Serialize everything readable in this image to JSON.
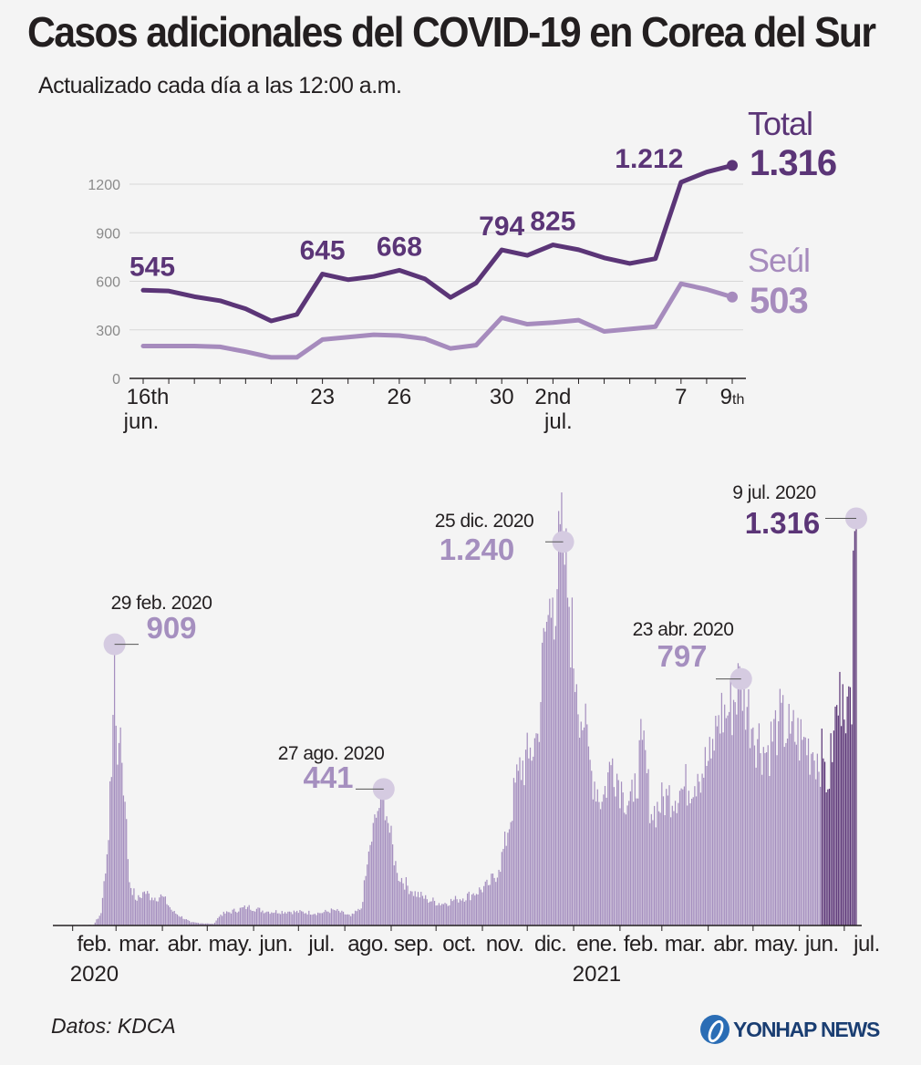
{
  "header": {
    "title": "Casos adicionales del COVID-19 en Corea del Sur",
    "subtitle": "Actualizado cada día a las 12:00 a.m."
  },
  "footer": {
    "source": "Datos: KDCA",
    "logo_text": "YONHAP NEWS"
  },
  "colors": {
    "total": "#5b3577",
    "seoul": "#a68bbd",
    "bar": "#a58fbf",
    "bar_recent": "#5b3577",
    "marker": "#d5cbe1"
  },
  "chart_data": [
    {
      "type": "line",
      "ylim": [
        0,
        1200
      ],
      "yticks": [
        0,
        300,
        600,
        900,
        1200
      ],
      "x": [
        "16 jun.",
        "17 jun.",
        "18 jun.",
        "19 jun.",
        "20 jun.",
        "21 jun.",
        "22 jun.",
        "23 jun.",
        "24 jun.",
        "25 jun.",
        "26 jun.",
        "27 jun.",
        "28 jun.",
        "29 jun.",
        "30 jun.",
        "1 jul.",
        "2 jul.",
        "3 jul.",
        "4 jul.",
        "5 jul.",
        "6 jul.",
        "7 jul.",
        "8 jul.",
        "9 jul."
      ],
      "x_tick_labels": [
        {
          "index": 0,
          "line1": "16th",
          "line2": "jun."
        },
        {
          "index": 7,
          "line1": "23",
          "line2": ""
        },
        {
          "index": 10,
          "line1": "26",
          "line2": ""
        },
        {
          "index": 14,
          "line1": "30",
          "line2": ""
        },
        {
          "index": 16,
          "line1": "2nd",
          "line2": "jul."
        },
        {
          "index": 21,
          "line1": "7",
          "line2": ""
        },
        {
          "index": 23,
          "line1": "9",
          "sup": "th",
          "line2": ""
        }
      ],
      "series": [
        {
          "name": "Total",
          "final_label": "1.316",
          "values": [
            545,
            540,
            505,
            480,
            430,
            355,
            395,
            645,
            610,
            630,
            668,
            615,
            500,
            590,
            794,
            760,
            825,
            795,
            745,
            710,
            740,
            1212,
            1275,
            1316
          ]
        },
        {
          "name": "Seúl",
          "final_label": "503",
          "values": [
            200,
            200,
            200,
            195,
            165,
            130,
            130,
            240,
            255,
            270,
            265,
            245,
            185,
            205,
            375,
            335,
            345,
            360,
            290,
            305,
            320,
            585,
            550,
            503
          ]
        }
      ],
      "value_labels": [
        {
          "index": 0,
          "text": "545"
        },
        {
          "index": 7,
          "text": "645"
        },
        {
          "index": 10,
          "text": "668"
        },
        {
          "index": 14,
          "text": "794"
        },
        {
          "index": 16,
          "text": "825"
        },
        {
          "index": 21,
          "text": "1.212"
        }
      ]
    },
    {
      "type": "bar",
      "ylim": [
        0,
        1400
      ],
      "x_tick_labels": [
        "feb.",
        "mar.",
        "abr.",
        "may.",
        "jun.",
        "jul.",
        "ago.",
        "sep.",
        "oct.",
        "nov.",
        "dic.",
        "ene.",
        "feb.",
        "mar.",
        "abr.",
        "may.",
        "jun.",
        "jul."
      ],
      "year_labels": [
        {
          "month_index": 0,
          "text": "2020"
        },
        {
          "month_index": 11,
          "text": "2021"
        }
      ],
      "anchors": [
        [
          "2020-01-20",
          1
        ],
        [
          "2020-02-15",
          2
        ],
        [
          "2020-02-20",
          40
        ],
        [
          "2020-02-24",
          230
        ],
        [
          "2020-02-27",
          480
        ],
        [
          "2020-02-29",
          909
        ],
        [
          "2020-03-02",
          520
        ],
        [
          "2020-03-04",
          640
        ],
        [
          "2020-03-07",
          400
        ],
        [
          "2020-03-10",
          140
        ],
        [
          "2020-03-15",
          80
        ],
        [
          "2020-03-20",
          110
        ],
        [
          "2020-03-25",
          90
        ],
        [
          "2020-04-01",
          95
        ],
        [
          "2020-04-08",
          45
        ],
        [
          "2020-04-20",
          10
        ],
        [
          "2020-05-05",
          5
        ],
        [
          "2020-05-10",
          35
        ],
        [
          "2020-05-28",
          60
        ],
        [
          "2020-06-10",
          45
        ],
        [
          "2020-06-25",
          45
        ],
        [
          "2020-07-15",
          40
        ],
        [
          "2020-07-25",
          50
        ],
        [
          "2020-08-05",
          30
        ],
        [
          "2020-08-12",
          55
        ],
        [
          "2020-08-15",
          160
        ],
        [
          "2020-08-18",
          260
        ],
        [
          "2020-08-23",
          370
        ],
        [
          "2020-08-27",
          441
        ],
        [
          "2020-08-31",
          300
        ],
        [
          "2020-09-05",
          170
        ],
        [
          "2020-09-15",
          110
        ],
        [
          "2020-09-25",
          85
        ],
        [
          "2020-10-05",
          70
        ],
        [
          "2020-10-15",
          85
        ],
        [
          "2020-10-25",
          100
        ],
        [
          "2020-11-05",
          130
        ],
        [
          "2020-11-12",
          180
        ],
        [
          "2020-11-18",
          300
        ],
        [
          "2020-11-25",
          500
        ],
        [
          "2020-12-02",
          540
        ],
        [
          "2020-12-08",
          620
        ],
        [
          "2020-12-13",
          950
        ],
        [
          "2020-12-18",
          1060
        ],
        [
          "2020-12-25",
          1240
        ],
        [
          "2020-12-29",
          1030
        ],
        [
          "2021-01-03",
          780
        ],
        [
          "2021-01-08",
          640
        ],
        [
          "2021-01-13",
          500
        ],
        [
          "2021-01-20",
          400
        ],
        [
          "2021-01-27",
          540
        ],
        [
          "2021-02-03",
          430
        ],
        [
          "2021-02-10",
          400
        ],
        [
          "2021-02-16",
          600
        ],
        [
          "2021-02-22",
          360
        ],
        [
          "2021-03-05",
          420
        ],
        [
          "2021-03-15",
          440
        ],
        [
          "2021-03-25",
          490
        ],
        [
          "2021-04-03",
          540
        ],
        [
          "2021-04-08",
          680
        ],
        [
          "2021-04-15",
          690
        ],
        [
          "2021-04-23",
          797
        ],
        [
          "2021-05-01",
          640
        ],
        [
          "2021-05-10",
          560
        ],
        [
          "2021-05-18",
          660
        ],
        [
          "2021-05-26",
          620
        ],
        [
          "2021-06-03",
          600
        ],
        [
          "2021-06-10",
          560
        ],
        [
          "2021-06-17",
          540
        ],
        [
          "2021-06-20",
          440
        ],
        [
          "2021-06-24",
          630
        ],
        [
          "2021-06-30",
          780
        ],
        [
          "2021-07-03",
          740
        ],
        [
          "2021-07-06",
          650
        ],
        [
          "2021-07-07",
          1212
        ],
        [
          "2021-07-08",
          1275
        ],
        [
          "2021-07-09",
          1316
        ]
      ],
      "recent_from": "2021-06-16",
      "annotations": [
        {
          "date": "29 feb. 2020",
          "value": "909"
        },
        {
          "date": "27 ago. 2020",
          "value": "441"
        },
        {
          "date": "25 dic. 2020",
          "value": "1.240"
        },
        {
          "date": "23 abr. 2020",
          "value": "797"
        },
        {
          "date": "9 jul. 2020",
          "value": "1.316"
        }
      ]
    }
  ]
}
